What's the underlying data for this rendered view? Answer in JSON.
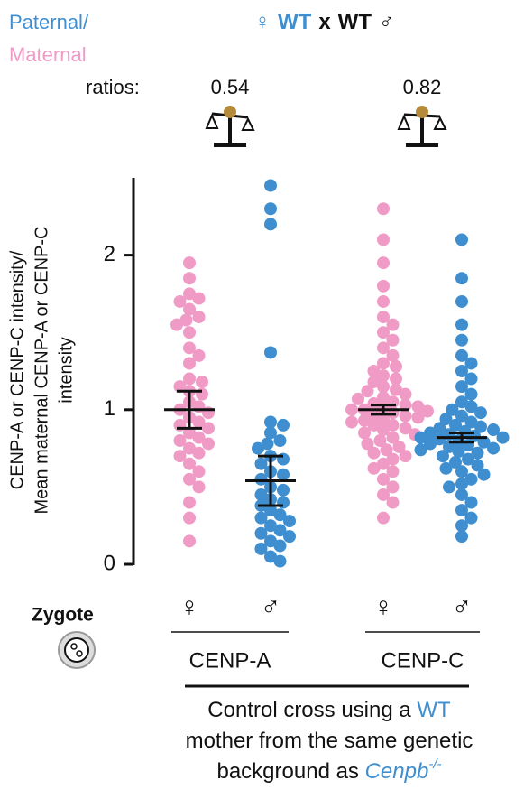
{
  "chart_data": {
    "type": "strip",
    "header": {
      "paternal": "Paternal/",
      "maternal": "Maternal",
      "ratios_label": "ratios:",
      "cross": [
        {
          "text": "♀",
          "color": "#3f8fd0",
          "bold": false
        },
        {
          "text": "WT",
          "color": "#3f8fd0",
          "bold": true
        },
        {
          "text": "x",
          "color": "#111111",
          "bold": true
        },
        {
          "text": "WT",
          "color": "#111111",
          "bold": true
        },
        {
          "text": "♂",
          "color": "#111111",
          "bold": false
        }
      ]
    },
    "ratios": [
      0.54,
      0.82
    ],
    "ylabel": [
      "CENP-A or CENP-C intensity/",
      "Mean maternal CENP-A or CENP-C",
      "intensity"
    ],
    "ylim": [
      0,
      2.5
    ],
    "yticks": [
      0,
      1,
      2
    ],
    "row_label": "Zygote",
    "categories": [
      "♀",
      "♂",
      "♀",
      "♂"
    ],
    "groups": [
      "CENP-A",
      "CENP-C"
    ],
    "series": [
      {
        "color": "#ef9bc6",
        "mean": 1.0,
        "error": 0.12,
        "values": [
          1.95,
          1.85,
          1.75,
          1.72,
          1.7,
          1.65,
          1.6,
          1.58,
          1.55,
          1.5,
          1.4,
          1.35,
          1.3,
          1.2,
          1.18,
          1.15,
          1.12,
          1.1,
          1.05,
          1.02,
          1.0,
          0.98,
          0.95,
          0.92,
          0.9,
          0.88,
          0.85,
          0.82,
          0.8,
          0.78,
          0.75,
          0.72,
          0.7,
          0.65,
          0.6,
          0.55,
          0.5,
          0.4,
          0.3,
          0.15
        ]
      },
      {
        "color": "#3f8fd0",
        "mean": 0.54,
        "error": 0.16,
        "values": [
          2.45,
          2.3,
          2.2,
          1.37,
          0.92,
          0.9,
          0.85,
          0.8,
          0.78,
          0.75,
          0.7,
          0.68,
          0.65,
          0.6,
          0.58,
          0.55,
          0.5,
          0.48,
          0.45,
          0.42,
          0.4,
          0.38,
          0.35,
          0.32,
          0.3,
          0.28,
          0.25,
          0.22,
          0.2,
          0.18,
          0.15,
          0.12,
          0.1,
          0.05,
          0.02
        ]
      },
      {
        "color": "#ef9bc6",
        "mean": 1.0,
        "error": 0.03,
        "values": [
          2.3,
          2.1,
          1.95,
          1.8,
          1.7,
          1.6,
          1.55,
          1.5,
          1.45,
          1.4,
          1.35,
          1.3,
          1.28,
          1.25,
          1.22,
          1.2,
          1.18,
          1.15,
          1.13,
          1.12,
          1.1,
          1.08,
          1.07,
          1.05,
          1.04,
          1.03,
          1.02,
          1.01,
          1.0,
          1.0,
          0.99,
          0.98,
          0.97,
          0.96,
          0.95,
          0.94,
          0.93,
          0.92,
          0.9,
          0.9,
          0.88,
          0.87,
          0.85,
          0.84,
          0.82,
          0.8,
          0.78,
          0.76,
          0.74,
          0.72,
          0.7,
          0.68,
          0.65,
          0.62,
          0.6,
          0.55,
          0.5,
          0.45,
          0.4,
          0.3
        ]
      },
      {
        "color": "#3f8fd0",
        "mean": 0.82,
        "error": 0.03,
        "values": [
          2.1,
          1.85,
          1.7,
          1.55,
          1.45,
          1.35,
          1.3,
          1.25,
          1.2,
          1.15,
          1.1,
          1.05,
          1.02,
          1.0,
          0.98,
          0.96,
          0.94,
          0.92,
          0.9,
          0.89,
          0.88,
          0.87,
          0.86,
          0.85,
          0.84,
          0.83,
          0.82,
          0.82,
          0.81,
          0.8,
          0.79,
          0.78,
          0.77,
          0.76,
          0.75,
          0.74,
          0.73,
          0.72,
          0.7,
          0.68,
          0.66,
          0.64,
          0.62,
          0.6,
          0.58,
          0.55,
          0.52,
          0.5,
          0.45,
          0.4,
          0.35,
          0.3,
          0.25,
          0.18
        ]
      }
    ],
    "caption": [
      {
        "text": "Control cross using a ",
        "color": "#111111",
        "italic": false
      },
      {
        "text": "WT",
        "color": "#3f8fd0",
        "italic": false
      },
      {
        "text": "mother from the same genetic",
        "color": "#111111",
        "italic": false,
        "newline": true
      },
      {
        "text": "background as ",
        "color": "#111111",
        "italic": false,
        "newline": true
      },
      {
        "text": "Cenpb",
        "color": "#3f8fd0",
        "italic": true
      },
      {
        "text": "-/-",
        "color": "#3f8fd0",
        "italic": true,
        "sup": true
      }
    ]
  }
}
